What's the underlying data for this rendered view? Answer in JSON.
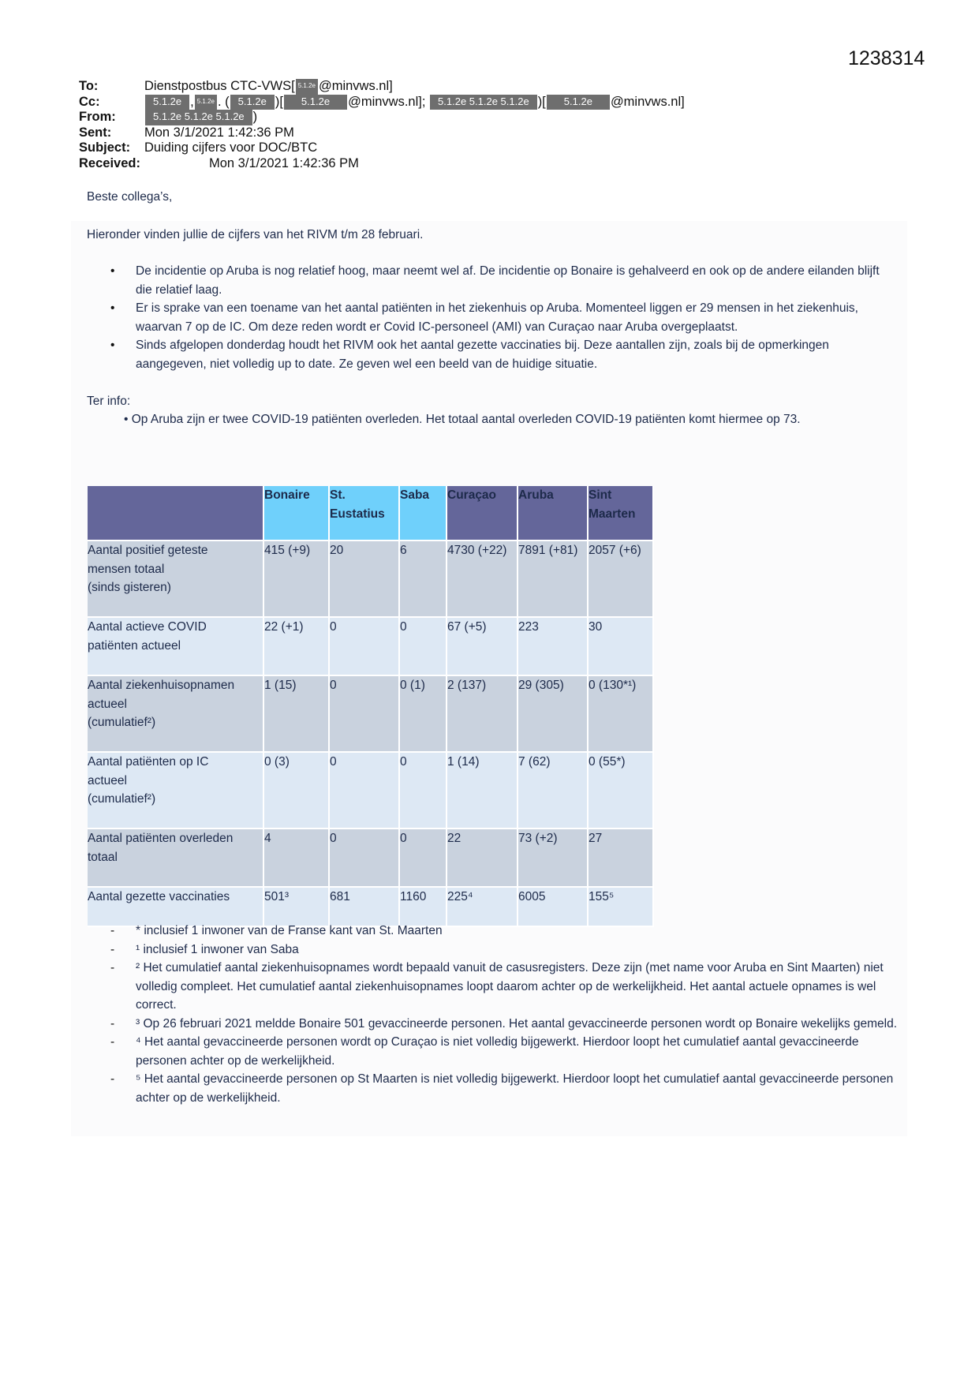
{
  "document_number": "1238314",
  "email": {
    "labels": {
      "to": "To:",
      "cc": "Cc:",
      "from": "From:",
      "sent": "Sent:",
      "subject": "Subject:",
      "received": "Received:"
    },
    "to": {
      "name": "Dienstpostbus CTC-VWS[",
      "redaction": "5.1.2e",
      "domain": "@minvws.nl]"
    },
    "cc_parts": [
      "5.1.2e",
      ",",
      "5.1.2e",
      ". (",
      "5.1.2e",
      ")[",
      "5.1.2e",
      "@minvws.nl];",
      "5.1.2e 5.1.2e 5.1.2e",
      ")[",
      "5.1.2e",
      "@minvws.nl]"
    ],
    "from": {
      "redaction": "5.1.2e 5.1.2e 5.1.2e",
      "suffix": ")"
    },
    "sent": "Mon 3/1/2021 1:42:36 PM",
    "subject": "Duiding cijfers voor DOC/BTC",
    "received": "Mon 3/1/2021 1:42:36 PM"
  },
  "body": {
    "greeting": "Beste collega’s,",
    "intro": "Hieronder vinden jullie de cijfers van het RIVM t/m 28 februari.",
    "bullets": [
      "De incidentie op Aruba is nog relatief hoog, maar neemt wel af. De incidentie op Bonaire is gehalveerd en ook op de andere eilanden blijft die relatief laag.",
      "Er is sprake van een toename van het aantal patiënten in het ziekenhuis op Aruba. Momenteel liggen er 29 mensen in het ziekenhuis, waarvan 7 op de IC. Om deze reden wordt er Covid IC-personeel (AMI) van Curaçao naar Aruba overgeplaatst.",
      "Sinds afgelopen donderdag houdt het RIVM ook het aantal gezette vaccinaties bij. Deze aantallen zijn, zoals bij de opmerkingen aangegeven, niet volledig up to date. Ze geven wel een beeld van de huidige situatie."
    ],
    "ter_info": "Ter info:",
    "ter_info_bullet": "• Op Aruba zijn er twee COVID-19 patiënten overleden. Het totaal aantal overleden COVID-19 patiënten komt hiermee op 73."
  },
  "table": {
    "header_colors": {
      "dark": "#64669a",
      "light": "#6fd0fb"
    },
    "columns": [
      "",
      "Bonaire",
      "St. Eustatius",
      "Saba",
      "Curaçao",
      "Aruba",
      "Sint Maarten"
    ],
    "rows": [
      {
        "label": [
          "Aantal positief geteste",
          "mensen totaal",
          "(sinds gisteren)"
        ],
        "cells": [
          "415 (+9)",
          "20",
          "6",
          "4730 (+22)",
          "7891 (+81)",
          "2057 (+6)"
        ]
      },
      {
        "label": [
          "Aantal actieve COVID",
          "patiënten actueel"
        ],
        "cells": [
          "22 (+1)",
          "0",
          "0",
          "67 (+5)",
          "223",
          "30"
        ]
      },
      {
        "label": [
          "Aantal ziekenhuisopnamen",
          "actueel",
          "(cumulatief²)"
        ],
        "cells": [
          "1 (15)",
          "0",
          "0 (1)",
          "2 (137)",
          "29 (305)",
          "0 (130*¹)"
        ]
      },
      {
        "label": [
          "Aantal patiënten op IC",
          "actueel",
          "(cumulatief²)"
        ],
        "cells": [
          "0 (3)",
          "0",
          "0",
          "1 (14)",
          "7 (62)",
          "0 (55*)"
        ]
      },
      {
        "label": [
          "Aantal patiënten overleden",
          "totaal"
        ],
        "cells": [
          "4",
          "0",
          "0",
          "22",
          "73 (+2)",
          "27"
        ]
      },
      {
        "label": [
          "Aantal gezette vaccinaties"
        ],
        "cells": [
          "501³",
          "681",
          "1160",
          "225⁴",
          "6005",
          "155⁵"
        ]
      }
    ]
  },
  "footnotes": [
    "* inclusief 1 inwoner van de Franse kant van St. Maarten",
    "¹ inclusief 1 inwoner van Saba",
    "² Het cumulatief aantal ziekenhuisopnames wordt bepaald vanuit de casusregisters. Deze zijn (met name voor Aruba en Sint Maarten) niet volledig compleet. Het cumulatief aantal ziekenhuisopnames loopt daarom achter op de werkelijkheid. Het aantal actuele opnames is wel correct.",
    "³ Op 26 februari 2021 meldde Bonaire 501 gevaccineerde personen. Het aantal gevaccineerde personen wordt op Bonaire wekelijks gemeld.",
    "⁴ Het aantal gevaccineerde personen wordt op Curaçao is niet volledig bijgewerkt. Hierdoor loopt het cumulatief aantal gevaccineerde personen achter op de werkelijkheid.",
    "⁵ Het aantal gevaccineerde personen op St Maarten is niet volledig bijgewerkt. Hierdoor loopt het cumulatief aantal gevaccineerde personen achter op de werkelijkheid."
  ]
}
